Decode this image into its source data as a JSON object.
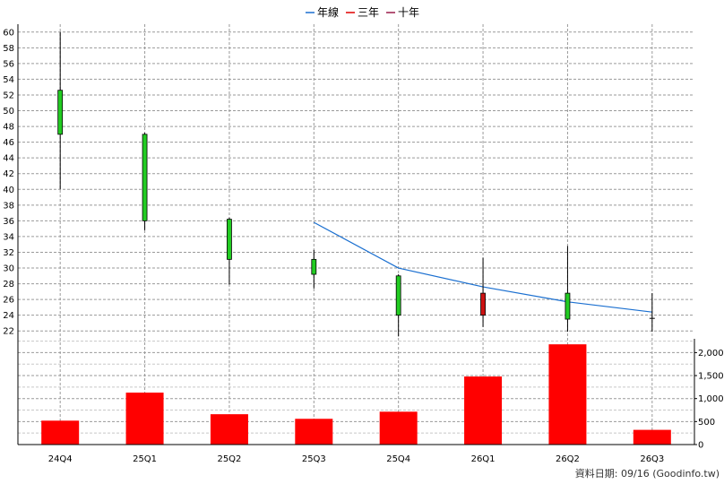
{
  "legend": [
    {
      "label": "年線",
      "color": "#1a6fd0"
    },
    {
      "label": "三年",
      "color": "#e00000"
    },
    {
      "label": "十年",
      "color": "#9b1c4a"
    }
  ],
  "footer": "資料日期: 09/16  (Goodinfo.tw)",
  "chart_data": {
    "type": "candlestick+bar",
    "categories": [
      "24Q4",
      "25Q1",
      "25Q2",
      "25Q3",
      "25Q4",
      "26Q1",
      "26Q2",
      "26Q3"
    ],
    "price_axis": {
      "ylim": [
        21,
        61
      ],
      "ticks": [
        22,
        24,
        26,
        28,
        30,
        32,
        34,
        36,
        38,
        40,
        42,
        44,
        46,
        48,
        50,
        52,
        54,
        56,
        58,
        60
      ],
      "side": "left"
    },
    "volume_axis": {
      "ylim": [
        0,
        2300
      ],
      "ticks": [
        0,
        500,
        1000,
        1500,
        2000
      ],
      "tick_labels": [
        "0",
        "500",
        "1,000",
        "1,500",
        "2,000"
      ],
      "side": "right"
    },
    "candles": [
      {
        "open": 47.0,
        "close": 52.6,
        "high": 60.0,
        "low": 40.0,
        "color": "#22cc22"
      },
      {
        "open": 36.0,
        "close": 47.0,
        "high": 47.2,
        "low": 34.8,
        "color": "#22cc22"
      },
      {
        "open": 31.1,
        "close": 36.2,
        "high": 36.4,
        "low": 27.9,
        "color": "#22cc22"
      },
      {
        "open": 29.2,
        "close": 31.1,
        "high": 32.3,
        "low": 27.4,
        "color": "#22cc22"
      },
      {
        "open": 24.0,
        "close": 29.0,
        "high": 29.2,
        "low": 21.3,
        "color": "#22cc22"
      },
      {
        "open": 26.8,
        "close": 24.0,
        "high": 31.3,
        "low": 22.5,
        "color": "#cc1111"
      },
      {
        "open": 23.5,
        "close": 26.8,
        "high": 32.8,
        "low": 21.9,
        "color": "#22cc22"
      },
      {
        "open": 23.6,
        "close": 23.6,
        "high": 26.8,
        "low": 21.9,
        "color": "#22cc22"
      }
    ],
    "moving_average": {
      "name": "年線",
      "values": [
        null,
        null,
        null,
        35.8,
        30.0,
        27.6,
        25.7,
        24.4
      ]
    },
    "volume": [
      520,
      1130,
      660,
      560,
      715,
      1480,
      2180,
      320
    ],
    "volume_color": "#ff0000",
    "grid": true
  }
}
